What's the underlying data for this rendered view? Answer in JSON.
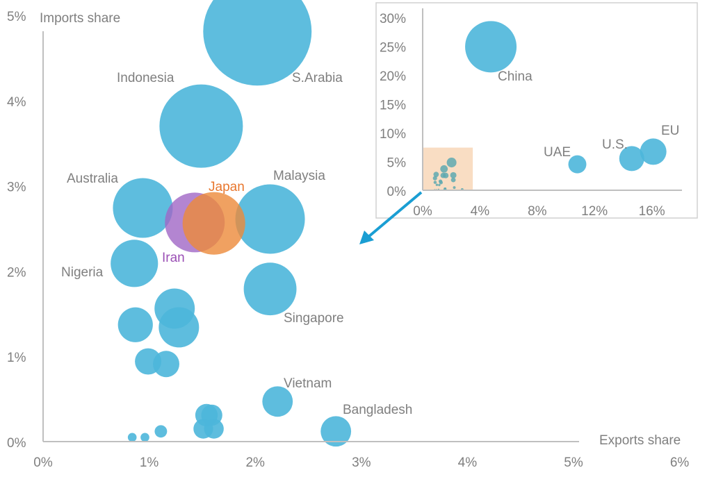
{
  "chart_data": [
    {
      "type": "scatter",
      "subtype": "bubble",
      "title": "",
      "xlabel": "Exports share",
      "ylabel": "Imports share",
      "xlim": [
        0,
        6
      ],
      "ylim": [
        0,
        5
      ],
      "x_ticks": [
        "0%",
        "1%",
        "2%",
        "3%",
        "4%",
        "5%",
        "6%"
      ],
      "y_ticks": [
        "0%",
        "1%",
        "2%",
        "3%",
        "4%",
        "5%"
      ],
      "grid": false,
      "units": "percent",
      "points": [
        {
          "label": "S.Arabia",
          "x": 2.02,
          "y": 4.81,
          "size": 60.8,
          "color": "#4db6da"
        },
        {
          "label": "Indonesia",
          "x": 1.49,
          "y": 3.7,
          "size": 36,
          "color": "#4db6da"
        },
        {
          "label": "Malaysia",
          "x": 2.14,
          "y": 2.61,
          "size": 25,
          "color": "#4db6da"
        },
        {
          "label": "Australia",
          "x": 0.94,
          "y": 2.74,
          "size": 18.5,
          "color": "#4db6da"
        },
        {
          "label": "Iran",
          "x": 1.43,
          "y": 2.57,
          "size": 18.5,
          "color": "#a066c6"
        },
        {
          "label": "Japan",
          "x": 1.61,
          "y": 2.56,
          "size": 20.3,
          "color": "#ec8a3a"
        },
        {
          "label": "Nigeria",
          "x": 0.86,
          "y": 2.09,
          "size": 11.6,
          "color": "#4db6da"
        },
        {
          "label": "Singapore",
          "x": 2.14,
          "y": 1.79,
          "size": 14.4,
          "color": "#4db6da"
        },
        {
          "label": "",
          "x": 1.24,
          "y": 1.56,
          "size": 8.4,
          "color": "#4db6da"
        },
        {
          "label": "",
          "x": 1.28,
          "y": 1.34,
          "size": 8.4,
          "color": "#4db6da"
        },
        {
          "label": "",
          "x": 0.87,
          "y": 1.37,
          "size": 6.3,
          "color": "#4db6da"
        },
        {
          "label": "",
          "x": 0.99,
          "y": 0.94,
          "size": 3.6,
          "color": "#4db6da"
        },
        {
          "label": "",
          "x": 1.16,
          "y": 0.91,
          "size": 3.6,
          "color": "#4db6da"
        },
        {
          "label": "Vietnam",
          "x": 2.21,
          "y": 0.47,
          "size": 4.8,
          "color": "#4db6da"
        },
        {
          "label": "Bangladesh",
          "x": 2.76,
          "y": 0.12,
          "size": 4.8,
          "color": "#4db6da"
        },
        {
          "label": "",
          "x": 1.54,
          "y": 0.31,
          "size": 2.6,
          "color": "#4db6da"
        },
        {
          "label": "",
          "x": 1.59,
          "y": 0.31,
          "size": 2.3,
          "color": "#4db6da"
        },
        {
          "label": "",
          "x": 1.51,
          "y": 0.15,
          "size": 2.0,
          "color": "#4db6da"
        },
        {
          "label": "",
          "x": 1.61,
          "y": 0.15,
          "size": 2.0,
          "color": "#4db6da"
        },
        {
          "label": "",
          "x": 1.11,
          "y": 0.12,
          "size": 0.8,
          "color": "#4db6da"
        },
        {
          "label": "",
          "x": 0.84,
          "y": 0.05,
          "size": 0.4,
          "color": "#4db6da"
        },
        {
          "label": "",
          "x": 0.96,
          "y": 0.05,
          "size": 0.4,
          "color": "#4db6da"
        }
      ]
    },
    {
      "type": "scatter",
      "subtype": "bubble-inset",
      "title": "",
      "xlim": [
        0,
        18
      ],
      "ylim": [
        0,
        30
      ],
      "x_ticks": [
        "0%",
        "4%",
        "8%",
        "12%",
        "16%"
      ],
      "x_tick_values": [
        0,
        4,
        8,
        12,
        16
      ],
      "y_ticks": [
        "0%",
        "5%",
        "10%",
        "15%",
        "20%",
        "25%",
        "30%"
      ],
      "y_tick_values": [
        0,
        5,
        10,
        15,
        20,
        25,
        30
      ],
      "highlight_region": {
        "x": [
          0,
          3.5
        ],
        "y": [
          0,
          7.4
        ],
        "color": "#f8d9bd"
      },
      "small_points_color": "#5fa9b0",
      "points": [
        {
          "label": "China",
          "x": 4.76,
          "y": 24.9,
          "size": 1690
        },
        {
          "label": "UAE",
          "x": 10.8,
          "y": 4.5,
          "size": 208
        },
        {
          "label": "U.S.",
          "x": 14.6,
          "y": 5.5,
          "size": 400
        },
        {
          "label": "EU",
          "x": 16.1,
          "y": 6.7,
          "size": 446
        }
      ]
    }
  ],
  "colors": {
    "bubble": "#4db6da",
    "axis": "#bfbfbf",
    "text": "#7f7f7f",
    "japan": "#e8772e",
    "iran": "#9b4fb5",
    "arrow": "#1a9ed3"
  }
}
